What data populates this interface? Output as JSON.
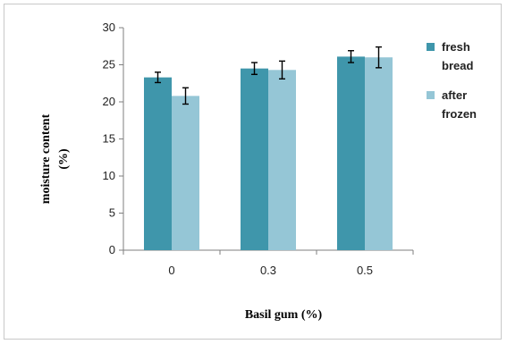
{
  "chart_data": {
    "type": "bar",
    "categories": [
      "0",
      "0.3",
      "0.5"
    ],
    "series": [
      {
        "name": "fresh bread",
        "values": [
          23.3,
          24.5,
          26.1
        ],
        "errors": [
          0.7,
          0.8,
          0.8
        ],
        "color": "#3f96ab"
      },
      {
        "name": "after frozen",
        "values": [
          20.8,
          24.3,
          26.0
        ],
        "errors": [
          1.1,
          1.2,
          1.4
        ],
        "color": "#95c6d6"
      }
    ],
    "xlabel": "Basil gum (%)",
    "ylabel_lines": [
      "moisture content",
      "(%)"
    ],
    "ylim": [
      0,
      30
    ],
    "yticks": [
      0,
      5,
      10,
      15,
      20,
      25,
      30
    ],
    "ytick_labels": [
      "0",
      "5",
      "10",
      "15",
      "20",
      "25",
      "30"
    ],
    "legend_lines": [
      [
        "fresh",
        "bread"
      ],
      [
        "after",
        "frozen"
      ]
    ],
    "legend_position": "right",
    "grid": false
  }
}
